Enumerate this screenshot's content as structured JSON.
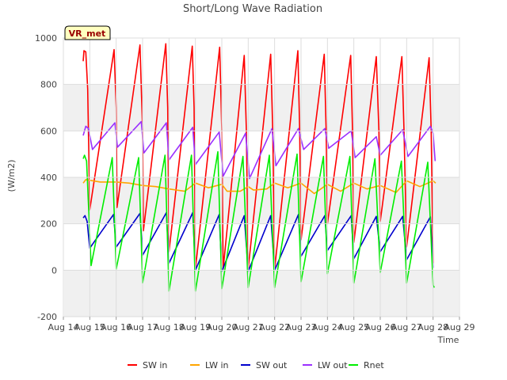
{
  "chart_data": {
    "type": "line",
    "title": "Short/Long Wave Radiation",
    "xlabel": "Time",
    "ylabel": "(W/m2)",
    "badge": "VR_met",
    "x_ticks": [
      "Aug 14",
      "Aug 15",
      "Aug 16",
      "Aug 17",
      "Aug 18",
      "Aug 19",
      "Aug 20",
      "Aug 21",
      "Aug 22",
      "Aug 23",
      "Aug 24",
      "Aug 25",
      "Aug 26",
      "Aug 27",
      "Aug 28",
      "Aug 29"
    ],
    "xlim": [
      14,
      29
    ],
    "ylim": [
      -200,
      1000
    ],
    "y_ticks": [
      -200,
      0,
      200,
      400,
      600,
      800,
      1000
    ],
    "grid": true,
    "legend_position": "bottom",
    "series": [
      {
        "name": "SW in",
        "color": "#ff0000",
        "points": [
          [
            14.75,
            900
          ],
          [
            14.78,
            945
          ],
          [
            14.85,
            940
          ],
          [
            14.92,
            780
          ],
          [
            15.0,
            260
          ],
          [
            15.92,
            950
          ],
          [
            16.0,
            700
          ],
          [
            16.03,
            270
          ],
          [
            16.9,
            970
          ],
          [
            17.0,
            600
          ],
          [
            17.03,
            170
          ],
          [
            17.88,
            975
          ],
          [
            17.95,
            700
          ],
          [
            18.0,
            80
          ],
          [
            18.88,
            965
          ],
          [
            18.95,
            700
          ],
          [
            19.0,
            5
          ],
          [
            19.92,
            960
          ],
          [
            20.0,
            600
          ],
          [
            20.05,
            5
          ],
          [
            20.85,
            925
          ],
          [
            20.93,
            600
          ],
          [
            21.0,
            5
          ],
          [
            21.85,
            930
          ],
          [
            21.93,
            600
          ],
          [
            22.0,
            5
          ],
          [
            22.88,
            945
          ],
          [
            22.95,
            600
          ],
          [
            23.0,
            130
          ],
          [
            23.88,
            930
          ],
          [
            23.95,
            600
          ],
          [
            24.0,
            200
          ],
          [
            24.88,
            925
          ],
          [
            24.95,
            600
          ],
          [
            25.0,
            120
          ],
          [
            25.85,
            920
          ],
          [
            25.95,
            600
          ],
          [
            26.0,
            210
          ],
          [
            26.82,
            920
          ],
          [
            26.9,
            600
          ],
          [
            27.0,
            100
          ],
          [
            27.85,
            915
          ],
          [
            27.93,
            600
          ],
          [
            28.0,
            30
          ]
        ]
      },
      {
        "name": "LW in",
        "color": "#ffa500",
        "points": [
          [
            14.75,
            375
          ],
          [
            14.85,
            390
          ],
          [
            15.4,
            380
          ],
          [
            16.0,
            380
          ],
          [
            16.5,
            375
          ],
          [
            17.0,
            365
          ],
          [
            17.5,
            360
          ],
          [
            18.0,
            350
          ],
          [
            18.6,
            340
          ],
          [
            19.0,
            375
          ],
          [
            19.5,
            355
          ],
          [
            20.0,
            370
          ],
          [
            20.2,
            340
          ],
          [
            20.7,
            340
          ],
          [
            21.0,
            360
          ],
          [
            21.2,
            345
          ],
          [
            21.7,
            350
          ],
          [
            22.0,
            375
          ],
          [
            22.5,
            355
          ],
          [
            23.0,
            375
          ],
          [
            23.5,
            330
          ],
          [
            24.0,
            370
          ],
          [
            24.5,
            340
          ],
          [
            25.0,
            375
          ],
          [
            25.5,
            350
          ],
          [
            26.0,
            365
          ],
          [
            26.6,
            335
          ],
          [
            27.0,
            385
          ],
          [
            27.5,
            360
          ],
          [
            28.0,
            385
          ],
          [
            28.1,
            375
          ]
        ]
      },
      {
        "name": "SW out",
        "color": "#0000cd",
        "points": [
          [
            14.75,
            225
          ],
          [
            14.82,
            235
          ],
          [
            14.9,
            210
          ],
          [
            15.0,
            95
          ],
          [
            15.9,
            240
          ],
          [
            16.0,
            100
          ],
          [
            16.9,
            245
          ],
          [
            17.0,
            65
          ],
          [
            17.9,
            248
          ],
          [
            18.0,
            30
          ],
          [
            18.9,
            248
          ],
          [
            19.0,
            0
          ],
          [
            19.9,
            240
          ],
          [
            20.0,
            -5
          ],
          [
            20.85,
            235
          ],
          [
            21.0,
            -5
          ],
          [
            21.85,
            235
          ],
          [
            22.0,
            0
          ],
          [
            22.9,
            240
          ],
          [
            23.0,
            60
          ],
          [
            23.9,
            235
          ],
          [
            24.0,
            85
          ],
          [
            24.9,
            235
          ],
          [
            25.0,
            50
          ],
          [
            25.85,
            232
          ],
          [
            26.0,
            80
          ],
          [
            26.85,
            232
          ],
          [
            27.0,
            45
          ],
          [
            27.9,
            230
          ],
          [
            28.0,
            10
          ]
        ]
      },
      {
        "name": "LW out",
        "color": "#9b30ff",
        "points": [
          [
            14.75,
            580
          ],
          [
            14.85,
            620
          ],
          [
            14.95,
            610
          ],
          [
            15.1,
            520
          ],
          [
            15.95,
            635
          ],
          [
            16.05,
            530
          ],
          [
            16.95,
            640
          ],
          [
            17.05,
            505
          ],
          [
            17.9,
            635
          ],
          [
            18.0,
            475
          ],
          [
            18.9,
            615
          ],
          [
            19.0,
            455
          ],
          [
            19.9,
            595
          ],
          [
            20.05,
            405
          ],
          [
            20.9,
            590
          ],
          [
            21.05,
            395
          ],
          [
            21.9,
            610
          ],
          [
            22.05,
            450
          ],
          [
            22.9,
            610
          ],
          [
            23.1,
            520
          ],
          [
            23.9,
            610
          ],
          [
            24.05,
            525
          ],
          [
            24.9,
            600
          ],
          [
            25.05,
            485
          ],
          [
            25.85,
            575
          ],
          [
            26.0,
            495
          ],
          [
            26.85,
            605
          ],
          [
            27.05,
            490
          ],
          [
            27.9,
            620
          ],
          [
            28.0,
            590
          ],
          [
            28.08,
            470
          ]
        ]
      },
      {
        "name": "Rnet",
        "color": "#00ee00",
        "points": [
          [
            14.75,
            480
          ],
          [
            14.8,
            495
          ],
          [
            14.88,
            470
          ],
          [
            15.05,
            20
          ],
          [
            15.85,
            485
          ],
          [
            16.0,
            5
          ],
          [
            16.85,
            485
          ],
          [
            17.0,
            -55
          ],
          [
            17.85,
            495
          ],
          [
            18.0,
            -90
          ],
          [
            18.85,
            495
          ],
          [
            19.0,
            -90
          ],
          [
            19.85,
            510
          ],
          [
            20.0,
            -80
          ],
          [
            20.8,
            490
          ],
          [
            21.0,
            -75
          ],
          [
            21.8,
            495
          ],
          [
            22.0,
            -75
          ],
          [
            22.85,
            500
          ],
          [
            23.0,
            -50
          ],
          [
            23.85,
            490
          ],
          [
            24.0,
            -15
          ],
          [
            24.85,
            490
          ],
          [
            25.0,
            -55
          ],
          [
            25.8,
            480
          ],
          [
            26.0,
            -10
          ],
          [
            26.8,
            470
          ],
          [
            27.0,
            -55
          ],
          [
            27.8,
            465
          ],
          [
            28.0,
            -65
          ],
          [
            28.05,
            -75
          ]
        ]
      }
    ]
  }
}
